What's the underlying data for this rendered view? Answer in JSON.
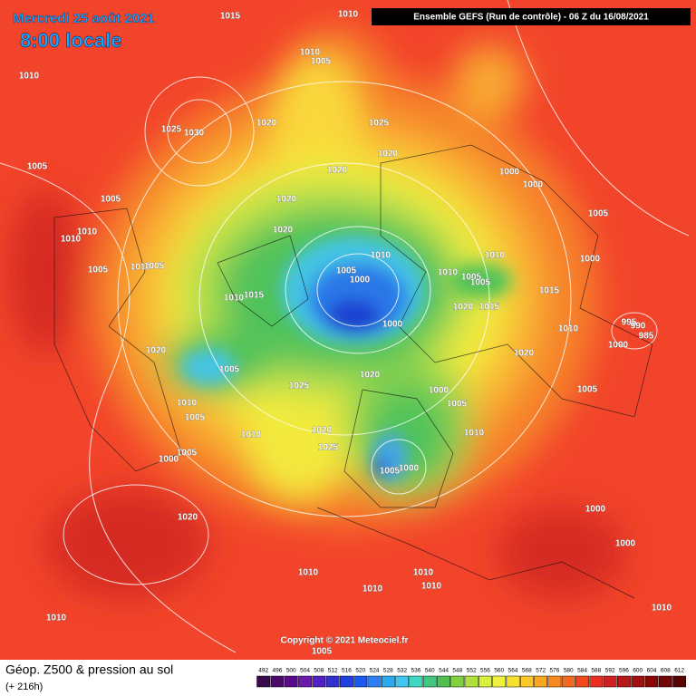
{
  "header": {
    "date": "Mercredi 25 août 2021",
    "time": "8:00 locale",
    "run": "Ensemble GEFS  (Run de contrôle)  -  06 Z du 16/08/2021",
    "copyright": "Copyright © 2021 Meteociel.fr"
  },
  "legend": {
    "title": "Géop. Z500 & pression au sol",
    "lead": "(+ 216h)",
    "scale": [
      492,
      496,
      500,
      504,
      508,
      512,
      516,
      520,
      524,
      528,
      532,
      536,
      540,
      544,
      548,
      552,
      556,
      560,
      564,
      568,
      572,
      576,
      580,
      584,
      588,
      592,
      596,
      600,
      604,
      608,
      612
    ],
    "colors": [
      "#3a0a4a",
      "#4a0a6a",
      "#5a0a8a",
      "#6a1aa8",
      "#5020c0",
      "#3030d0",
      "#2040e0",
      "#1a5af0",
      "#2a80f0",
      "#30a8f0",
      "#40c8f0",
      "#40d8c0",
      "#40c880",
      "#50c050",
      "#80d040",
      "#b0e040",
      "#d8f040",
      "#f0f040",
      "#f8e030",
      "#f8c828",
      "#f8a820",
      "#f88820",
      "#f06a20",
      "#f04a20",
      "#e83020",
      "#d02020",
      "#b81818",
      "#a01010",
      "#880808",
      "#700808",
      "#580404"
    ]
  },
  "isobar_labels": [
    "1015",
    "1010",
    "1010",
    "1010",
    "1005",
    "1025",
    "1030",
    "1020",
    "1025",
    "1005",
    "1020",
    "1020",
    "1000",
    "1000",
    "1005",
    "1020",
    "1005",
    "1010",
    "1010",
    "1020",
    "1010",
    "1010",
    "1000",
    "1005",
    "1010",
    "1005",
    "1005",
    "1000",
    "1010",
    "1005",
    "1005",
    "1010",
    "1015",
    "1015",
    "1020",
    "1015",
    "995",
    "990",
    "985",
    "1010",
    "1000",
    "1000",
    "1020",
    "1020",
    "1005",
    "1020",
    "1025",
    "1000",
    "1005",
    "1010",
    "1005",
    "1005",
    "1020",
    "1010",
    "1010",
    "1025",
    "1005",
    "1000",
    "1005",
    "1000",
    "1000",
    "1020",
    "1000",
    "1010",
    "1010",
    "1010",
    "1010",
    "1010",
    "1010",
    "1005"
  ]
}
